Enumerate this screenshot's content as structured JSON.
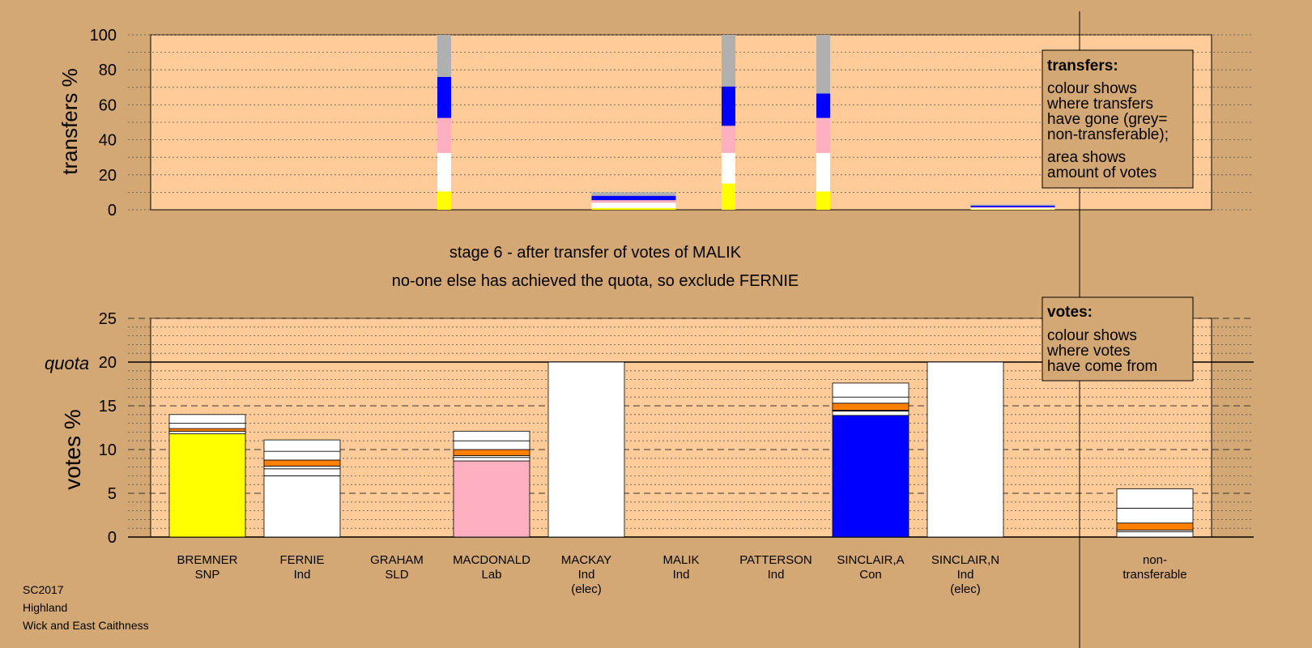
{
  "colors": {
    "background": "#D4A874",
    "plot_background": "#FFCC99",
    "SNP": "#FFFF00",
    "Ind": "#FFFFFF",
    "Lab": "#FFB0C0",
    "Con": "#0000FF",
    "orange": "#FF8000",
    "non_transferable": "#B0B0B0"
  },
  "stage_title": "stage 6 - after transfer of votes of MALIK",
  "stage_subtitle": "no-one else has achieved the quota, so exclude FERNIE",
  "footer": [
    "SC2017",
    "Highland",
    "Wick and East Caithness"
  ],
  "transfers_box": {
    "title": "transfers:",
    "lines": [
      "colour shows",
      "where transfers",
      "have gone (grey=",
      "non-transferable);",
      "area shows",
      "amount of votes"
    ]
  },
  "votes_box": {
    "title": "votes:",
    "lines": [
      "colour shows",
      "where votes",
      "have come from"
    ]
  },
  "chart_data": [
    {
      "type": "bar",
      "stacked": true,
      "ylabel": "transfers %",
      "ylim": [
        0,
        100
      ],
      "yticks": [
        0,
        20,
        40,
        60,
        80,
        100
      ],
      "grid": true,
      "bars": [
        {
          "column": 2.5,
          "width": "narrow",
          "segments": [
            {
              "color": "#FFFF00",
              "value": 10.5
            },
            {
              "color": "#FFFFFF",
              "value": 22
            },
            {
              "color": "#FFB0C0",
              "value": 20
            },
            {
              "color": "#0000FF",
              "value": 23.5
            },
            {
              "color": "#B0B0B0",
              "value": 24
            }
          ]
        },
        {
          "column": 4.5,
          "width": "wide",
          "segments": [
            {
              "color": "#FFFF00",
              "value": 1
            },
            {
              "color": "#FFFFFF",
              "value": 3
            },
            {
              "color": "#FFB0C0",
              "value": 1.5
            },
            {
              "color": "#0000FF",
              "value": 2.5
            },
            {
              "color": "#B0B0B0",
              "value": 2
            }
          ]
        },
        {
          "column": 5.5,
          "width": "narrow",
          "segments": [
            {
              "color": "#FFFF00",
              "value": 15
            },
            {
              "color": "#FFFFFF",
              "value": 17.5
            },
            {
              "color": "#FFB0C0",
              "value": 15.5
            },
            {
              "color": "#0000FF",
              "value": 22.5
            },
            {
              "color": "#B0B0B0",
              "value": 29.5
            }
          ]
        },
        {
          "column": 6.5,
          "width": "narrow",
          "segments": [
            {
              "color": "#FFFF00",
              "value": 10.5
            },
            {
              "color": "#FFFFFF",
              "value": 22
            },
            {
              "color": "#FFB0C0",
              "value": 20
            },
            {
              "color": "#0000FF",
              "value": 14
            },
            {
              "color": "#B0B0B0",
              "value": 33.5
            }
          ]
        },
        {
          "column": 8.5,
          "width": "wide",
          "segments": [
            {
              "color": "#FFFF00",
              "value": 0.3
            },
            {
              "color": "#FFFFFF",
              "value": 0.8
            },
            {
              "color": "#FFB0C0",
              "value": 0.4
            },
            {
              "color": "#0000FF",
              "value": 0.9
            },
            {
              "color": "#B0B0B0",
              "value": 0.6
            }
          ]
        }
      ]
    },
    {
      "type": "bar",
      "stacked": true,
      "ylabel": "votes %",
      "ylim": [
        0,
        25
      ],
      "yticks": [
        0,
        5,
        10,
        15,
        20,
        25
      ],
      "quota": 20,
      "quota_label": "quota",
      "grid": true,
      "categories": [
        {
          "name": "BREMNER",
          "party": "SNP",
          "note": ""
        },
        {
          "name": "FERNIE",
          "party": "Ind",
          "note": ""
        },
        {
          "name": "GRAHAM",
          "party": "SLD",
          "note": ""
        },
        {
          "name": "MACDONALD",
          "party": "Lab",
          "note": ""
        },
        {
          "name": "MACKAY",
          "party": "Ind",
          "note": "(elec)"
        },
        {
          "name": "MALIK",
          "party": "Ind",
          "note": ""
        },
        {
          "name": "PATTERSON",
          "party": "Ind",
          "note": ""
        },
        {
          "name": "SINCLAIR,A",
          "party": "Con",
          "note": ""
        },
        {
          "name": "SINCLAIR,N",
          "party": "Ind",
          "note": "(elec)"
        },
        {
          "name": "non-",
          "party": "transferable",
          "note": ""
        }
      ],
      "bars": [
        {
          "column": 0,
          "segments": [
            {
              "color": "#FFFF00",
              "value": 11.8
            },
            {
              "color": "#FFFFFF",
              "value": 0.3
            },
            {
              "color": "#FF8000",
              "value": 0.3
            },
            {
              "color": "#FFFFFF",
              "value": 0.6
            },
            {
              "color": "#FFFFFF",
              "value": 1.0
            }
          ]
        },
        {
          "column": 1,
          "segments": [
            {
              "color": "#FFFFFF",
              "value": 7.0
            },
            {
              "color": "#FFFFFF",
              "value": 0.8
            },
            {
              "color": "#FFFFFF",
              "value": 0.3
            },
            {
              "color": "#FF8000",
              "value": 0.7
            },
            {
              "color": "#FFFFFF",
              "value": 1.0
            },
            {
              "color": "#FFFFFF",
              "value": 1.3
            }
          ]
        },
        {
          "column": 3,
          "segments": [
            {
              "color": "#FFB0C0",
              "value": 8.7
            },
            {
              "color": "#FFFFFF",
              "value": 0.4
            },
            {
              "color": "#FFFFFF",
              "value": 0.2
            },
            {
              "color": "#FF8000",
              "value": 0.7
            },
            {
              "color": "#FFFFFF",
              "value": 1.0
            },
            {
              "color": "#FFFFFF",
              "value": 1.1
            }
          ]
        },
        {
          "column": 4,
          "segments": [
            {
              "color": "#FFFFFF",
              "value": 20
            }
          ]
        },
        {
          "column": 7,
          "segments": [
            {
              "color": "#0000FF",
              "value": 13.9
            },
            {
              "color": "#FFFFFF",
              "value": 0.5
            },
            {
              "color": "#FFFFFF",
              "value": 0.1
            },
            {
              "color": "#FF8000",
              "value": 0.8
            },
            {
              "color": "#FFFFFF",
              "value": 0.7
            },
            {
              "color": "#FFFFFF",
              "value": 1.6
            }
          ]
        },
        {
          "column": 8,
          "segments": [
            {
              "color": "#FFFFFF",
              "value": 20
            }
          ]
        },
        {
          "column": 9,
          "segments": [
            {
              "color": "#FFFFFF",
              "value": 0.6
            },
            {
              "color": "#FFFFFF",
              "value": 0.2
            },
            {
              "color": "#FF8000",
              "value": 0.8
            },
            {
              "color": "#FFFFFF",
              "value": 1.7
            },
            {
              "color": "#FFFFFF",
              "value": 2.2
            }
          ]
        }
      ]
    }
  ]
}
